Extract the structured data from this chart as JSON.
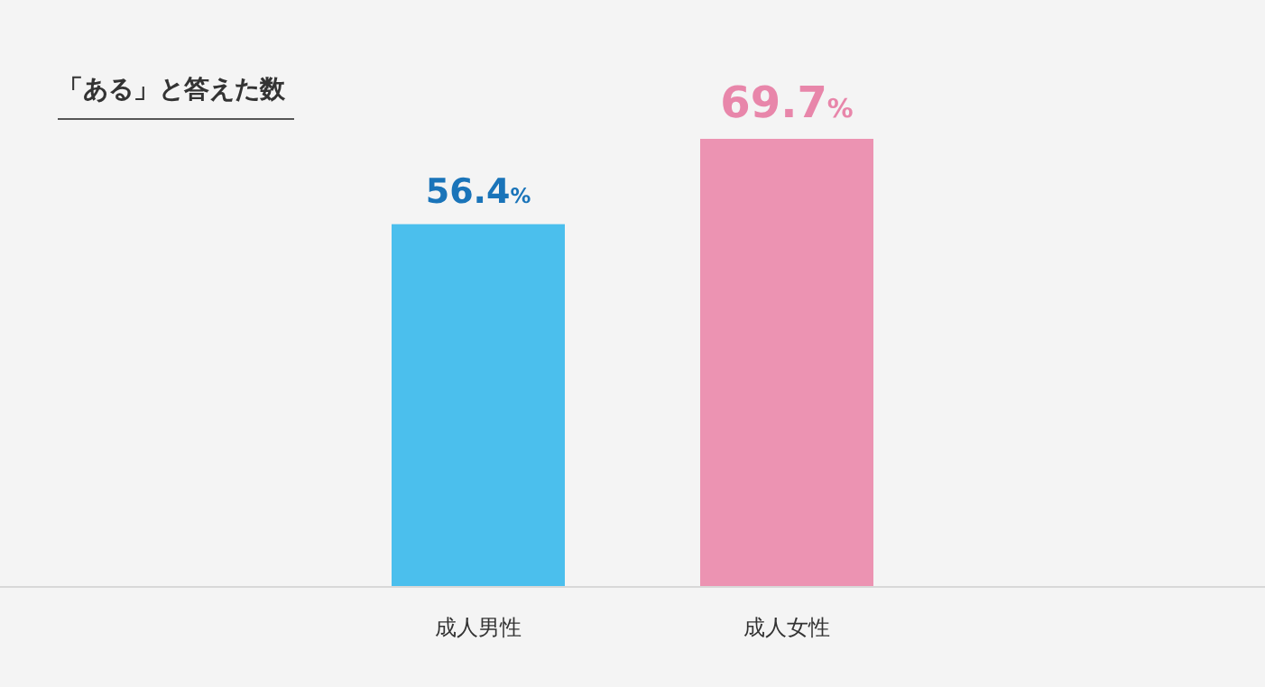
{
  "chart_data": {
    "type": "bar",
    "title": "「ある」と答えた数",
    "categories": [
      "成人男性",
      "成人女性"
    ],
    "values": [
      56.4,
      69.7
    ],
    "colors": [
      "#4bbfed",
      "#ec93b2"
    ],
    "value_labels": [
      "56.4%",
      "69.7%"
    ]
  }
}
